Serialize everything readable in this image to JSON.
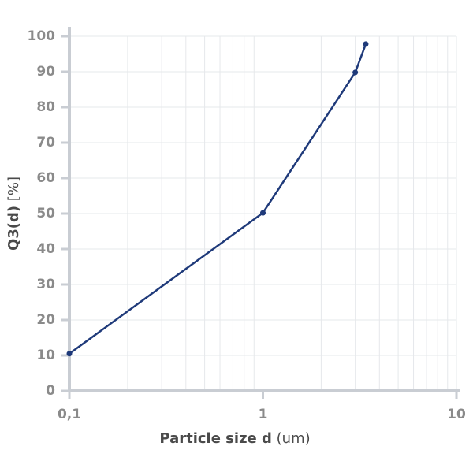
{
  "chart_data": {
    "type": "line",
    "x_label": "Particle size d",
    "x_unit": "(um)",
    "y_label": "Q3(d)",
    "y_unit": "[%]",
    "x": [
      0.1,
      1,
      3,
      3.4
    ],
    "series": [
      {
        "name": "Q3(d)",
        "color": "#1f3a7a",
        "values": [
          10.5,
          50.2,
          89.8,
          97.8
        ]
      }
    ],
    "xlim": [
      0.1,
      10
    ],
    "xscale": "log",
    "xticks": [
      {
        "value": 0.1,
        "label": "0,1"
      },
      1,
      10
    ],
    "ylim": [
      0,
      100
    ],
    "yticks": [
      0,
      10,
      20,
      30,
      40,
      50,
      60,
      70,
      80,
      90,
      100
    ],
    "grid": true
  }
}
